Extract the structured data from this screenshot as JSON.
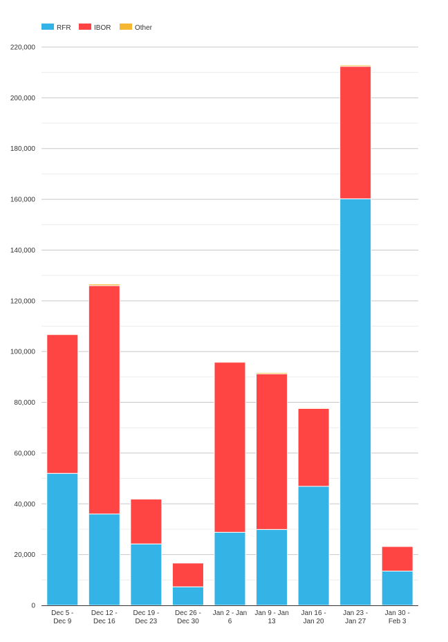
{
  "chart_data": {
    "type": "bar",
    "stacked": true,
    "categories": [
      [
        "Dec 5 -",
        "Dec 9"
      ],
      [
        "Dec 12 -",
        "Dec 16"
      ],
      [
        "Dec 19 -",
        "Dec 23"
      ],
      [
        "Dec 26 -",
        "Dec 30"
      ],
      [
        "Jan 2 - Jan",
        "6"
      ],
      [
        "Jan 9 - Jan",
        "13"
      ],
      [
        "Jan 16 -",
        "Jan 20"
      ],
      [
        "Jan 23 -",
        "Jan 27"
      ],
      [
        "Jan 30 -",
        "Feb 3"
      ]
    ],
    "series": [
      {
        "name": "RFR",
        "color": "#33b3e6",
        "values": [
          52000,
          36000,
          24200,
          7300,
          28800,
          29900,
          46900,
          160200,
          13500
        ]
      },
      {
        "name": "IBOR",
        "color": "#ff4444",
        "values": [
          54700,
          90000,
          17700,
          9400,
          67000,
          61300,
          30700,
          52200,
          9700
        ]
      },
      {
        "name": "Other",
        "color": "#f5b731",
        "values": [
          300,
          600,
          200,
          150,
          300,
          500,
          300,
          500,
          200
        ]
      }
    ],
    "ylim": [
      0,
      220000
    ],
    "yticks": [
      0,
      20000,
      40000,
      60000,
      80000,
      100000,
      120000,
      140000,
      160000,
      180000,
      200000,
      220000
    ],
    "grid": true,
    "legend": "top-left",
    "title": "",
    "xlabel": "",
    "ylabel": ""
  }
}
